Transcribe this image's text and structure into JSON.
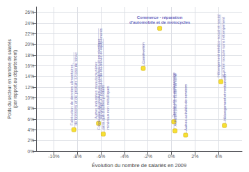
{
  "chart_data": {
    "type": "scatter",
    "xlabel": "Évolution du nombre de salariés en 2009",
    "ylabel": "Poids du secteur en nombre de salariés\n(par rapport au département)",
    "x": [
      -0.083,
      -0.062,
      -0.058,
      -0.024,
      -0.01,
      0.002,
      0.003,
      0.012,
      0.042,
      0.045
    ],
    "values": [
      0.04,
      0.052,
      0.032,
      0.155,
      0.23,
      0.055,
      0.038,
      0.03,
      0.13,
      0.048
    ],
    "point_labels": [
      "Fabrication de denrées alimentaires,\nde boissons et de produits à base de tabac",
      "Autres industries manufacturières;\nréparation et installation de machines et équipements",
      "Fabrication de produits en caoutchouc et en plastique\nainsi que d'autres produits\nminéraux non métalliques",
      "Construction",
      null,
      "Transports et entreposage",
      "Activités pour la santé humaine",
      "Autres activités de services",
      "Hébergement médico-social et social\net action sociale sans hébergement",
      "Hébergement et restauration"
    ],
    "annotations": [
      {
        "text": "Commerce - réparation\nd'automobile et de motocycles",
        "x": -0.01,
        "y": 0.23
      }
    ],
    "xlim": [
      -0.115,
      0.06
    ],
    "ylim": [
      0,
      0.27
    ],
    "xticks": [
      {
        "value": -0.1,
        "label": "-10%"
      },
      {
        "value": -0.08,
        "label": "-8%"
      },
      {
        "value": -0.06,
        "label": "-6%"
      },
      {
        "value": -0.04,
        "label": "-4%"
      },
      {
        "value": -0.02,
        "label": "-2%"
      },
      {
        "value": 0.0,
        "label": "0%"
      },
      {
        "value": 0.02,
        "label": "2%"
      },
      {
        "value": 0.04,
        "label": "4%"
      }
    ],
    "yticks": [
      {
        "value": 0.0,
        "label": "0%"
      },
      {
        "value": 0.02,
        "label": "2%"
      },
      {
        "value": 0.04,
        "label": "4%"
      },
      {
        "value": 0.06,
        "label": "6%"
      },
      {
        "value": 0.08,
        "label": "8%"
      },
      {
        "value": 0.1,
        "label": "10%"
      },
      {
        "value": 0.12,
        "label": "12%"
      },
      {
        "value": 0.14,
        "label": "14%"
      },
      {
        "value": 0.16,
        "label": "16%"
      },
      {
        "value": 0.18,
        "label": "18%"
      },
      {
        "value": 0.2,
        "label": "20%"
      },
      {
        "value": 0.22,
        "label": "22%"
      },
      {
        "value": 0.24,
        "label": "24%"
      },
      {
        "value": 0.26,
        "label": "26%"
      }
    ],
    "grid": true,
    "color": "#f5d800",
    "marker": "square"
  }
}
